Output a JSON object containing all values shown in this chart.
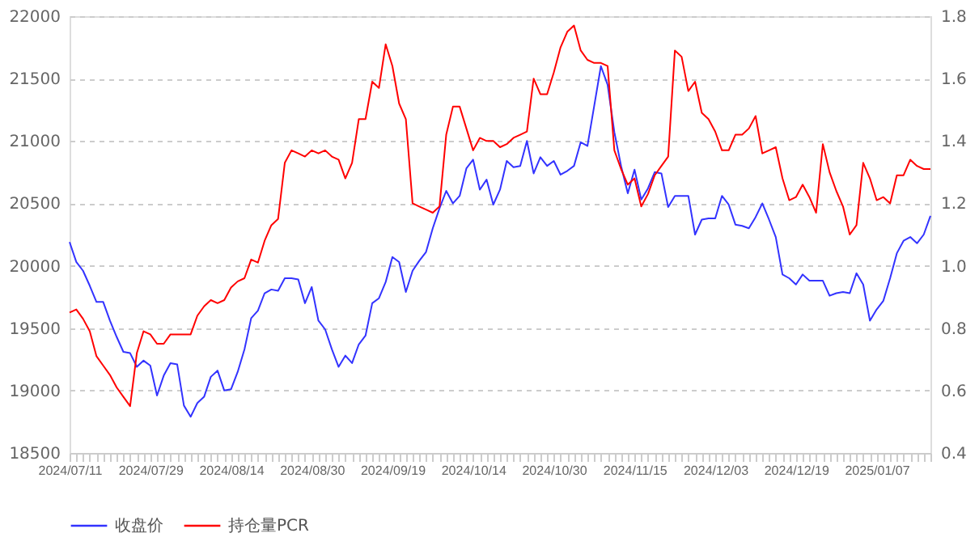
{
  "chart_data": {
    "type": "line",
    "categories": [
      "2024/07/11",
      null,
      null,
      null,
      null,
      null,
      null,
      null,
      null,
      null,
      null,
      null,
      "2024/07/29",
      null,
      null,
      null,
      null,
      null,
      null,
      null,
      null,
      null,
      null,
      null,
      "2024/08/14",
      null,
      null,
      null,
      null,
      null,
      null,
      null,
      null,
      null,
      null,
      null,
      "2024/08/30",
      null,
      null,
      null,
      null,
      null,
      null,
      null,
      null,
      null,
      null,
      null,
      "2024/09/19",
      null,
      null,
      null,
      null,
      null,
      null,
      null,
      null,
      null,
      null,
      null,
      "2024/10/14",
      null,
      null,
      null,
      null,
      null,
      null,
      null,
      null,
      null,
      null,
      null,
      "2024/10/30",
      null,
      null,
      null,
      null,
      null,
      null,
      null,
      null,
      null,
      null,
      null,
      "2024/11/15",
      null,
      null,
      null,
      null,
      null,
      null,
      null,
      null,
      null,
      null,
      null,
      "2024/12/03",
      null,
      null,
      null,
      null,
      null,
      null,
      null,
      null,
      null,
      null,
      null,
      "2024/12/19",
      null,
      null,
      null,
      null,
      null,
      null,
      null,
      null,
      null,
      null,
      null,
      "2025/01/07",
      null,
      null,
      null,
      null,
      null,
      null,
      null,
      null
    ],
    "series": [
      {
        "name": "收盘价",
        "color": "#3333ff",
        "axis": "y",
        "values": [
          20190,
          20030,
          19960,
          19840,
          19710,
          19710,
          19560,
          19430,
          19310,
          19300,
          19190,
          19240,
          19200,
          18960,
          19120,
          19220,
          19210,
          18880,
          18790,
          18900,
          18950,
          19110,
          19160,
          19000,
          19010,
          19150,
          19330,
          19580,
          19640,
          19780,
          19810,
          19800,
          19900,
          19900,
          19890,
          19700,
          19830,
          19560,
          19490,
          19330,
          19190,
          19280,
          19220,
          19370,
          19440,
          19700,
          19740,
          19870,
          20070,
          20030,
          19790,
          19960,
          20040,
          20110,
          20300,
          20460,
          20600,
          20500,
          20560,
          20780,
          20850,
          20610,
          20690,
          20490,
          20610,
          20840,
          20790,
          20800,
          21000,
          20740,
          20870,
          20800,
          20840,
          20730,
          20760,
          20800,
          20990,
          20960,
          21280,
          21600,
          21450,
          21070,
          20800,
          20580,
          20770,
          20530,
          20620,
          20750,
          20740,
          20470,
          20560,
          20560,
          20560,
          20250,
          20370,
          20380,
          20380,
          20560,
          20490,
          20330,
          20320,
          20300,
          20390,
          20500,
          20370,
          20230,
          19930,
          19900,
          19850,
          19930,
          19880,
          19880,
          19880,
          19760,
          19780,
          19790,
          19780,
          19940,
          19850,
          19560,
          19650,
          19720,
          19900,
          20100,
          20200,
          20230,
          20180,
          20250,
          20400
        ]
      },
      {
        "name": "持仓量PCR",
        "color": "#ff0000",
        "axis": "y2",
        "values": [
          0.85,
          0.86,
          0.83,
          0.79,
          0.71,
          0.68,
          0.65,
          0.61,
          0.58,
          0.55,
          0.72,
          0.79,
          0.78,
          0.75,
          0.75,
          0.78,
          0.78,
          0.78,
          0.78,
          0.84,
          0.87,
          0.89,
          0.88,
          0.89,
          0.93,
          0.95,
          0.96,
          1.02,
          1.01,
          1.08,
          1.13,
          1.15,
          1.33,
          1.37,
          1.36,
          1.35,
          1.37,
          1.36,
          1.37,
          1.35,
          1.34,
          1.28,
          1.33,
          1.47,
          1.47,
          1.59,
          1.57,
          1.71,
          1.64,
          1.52,
          1.47,
          1.2,
          1.19,
          1.18,
          1.17,
          1.19,
          1.42,
          1.51,
          1.51,
          1.44,
          1.37,
          1.41,
          1.4,
          1.4,
          1.38,
          1.39,
          1.41,
          1.42,
          1.43,
          1.6,
          1.55,
          1.55,
          1.62,
          1.7,
          1.75,
          1.77,
          1.69,
          1.66,
          1.65,
          1.65,
          1.64,
          1.37,
          1.31,
          1.26,
          1.28,
          1.19,
          1.23,
          1.29,
          1.32,
          1.35,
          1.69,
          1.67,
          1.56,
          1.59,
          1.49,
          1.47,
          1.43,
          1.37,
          1.37,
          1.42,
          1.42,
          1.44,
          1.48,
          1.36,
          1.37,
          1.38,
          1.28,
          1.21,
          1.22,
          1.26,
          1.22,
          1.17,
          1.39,
          1.3,
          1.24,
          1.19,
          1.1,
          1.13,
          1.33,
          1.28,
          1.21,
          1.22,
          1.2,
          1.29,
          1.29,
          1.34,
          1.32,
          1.31,
          1.31
        ]
      }
    ],
    "ylim": [
      18500,
      22000
    ],
    "yticks": [
      18500,
      19000,
      19500,
      20000,
      20500,
      21000,
      21500,
      22000
    ],
    "y2lim": [
      0.4,
      1.8
    ],
    "y2ticks": [
      0.4,
      0.6,
      0.8,
      {
        "value": 1.0,
        "label": "1.0"
      },
      1.2,
      1.4,
      1.6,
      1.8
    ],
    "grid": "y",
    "legend": "bottom"
  }
}
